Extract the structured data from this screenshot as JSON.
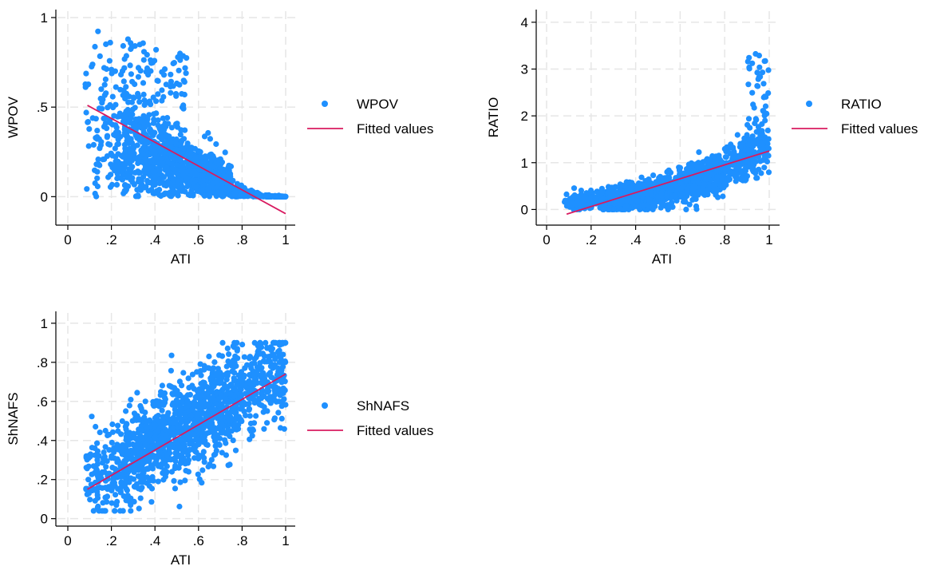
{
  "chart_data": [
    {
      "type": "scatter",
      "xlabel": "ATI",
      "ylabel": "WPOV",
      "xlim": [
        0,
        1
      ],
      "ylim": [
        -0.15,
        1
      ],
      "xticks": [
        0,
        0.2,
        0.4,
        0.6,
        0.8,
        1
      ],
      "xtick_labels": [
        "0",
        ".2",
        ".4",
        ".6",
        ".8",
        "1"
      ],
      "yticks": [
        0,
        0.5,
        1
      ],
      "ytick_labels": [
        "0",
        ".5",
        "1"
      ],
      "grid": true,
      "legend_position": "right",
      "series": [
        {
          "name": "WPOV",
          "kind": "scatter",
          "color": "#1E90FF"
        },
        {
          "name": "Fitted values",
          "kind": "line",
          "color": "#D81B60",
          "x": [
            0.09,
            1.0
          ],
          "y": [
            0.51,
            -0.095
          ]
        }
      ],
      "pattern": "decreasing",
      "point_cloud": {
        "x_range": [
          0.08,
          1.0
        ],
        "y_range": [
          0.0,
          0.93
        ],
        "approx_points": 1500
      }
    },
    {
      "type": "scatter",
      "xlabel": "ATI",
      "ylabel": "RATIO",
      "xlim": [
        0,
        1
      ],
      "ylim": [
        -0.3,
        4.1
      ],
      "xticks": [
        0,
        0.2,
        0.4,
        0.6,
        0.8,
        1
      ],
      "xtick_labels": [
        "0",
        ".2",
        ".4",
        ".6",
        ".8",
        "1"
      ],
      "yticks": [
        0,
        1,
        2,
        3,
        4
      ],
      "ytick_labels": [
        "0",
        "1",
        "2",
        "3",
        "4"
      ],
      "grid": true,
      "legend_position": "right",
      "series": [
        {
          "name": "RATIO",
          "kind": "scatter",
          "color": "#1E90FF"
        },
        {
          "name": "Fitted values",
          "kind": "line",
          "color": "#D81B60",
          "x": [
            0.09,
            1.0
          ],
          "y": [
            -0.1,
            1.25
          ]
        }
      ],
      "pattern": "convex-increasing",
      "point_cloud": {
        "x_range": [
          0.08,
          1.0
        ],
        "y_range": [
          0.0,
          3.4
        ],
        "approx_points": 1500
      }
    },
    {
      "type": "scatter",
      "xlabel": "ATI",
      "ylabel": "ShNAFS",
      "xlim": [
        0,
        1
      ],
      "ylim": [
        -0.03,
        1.02
      ],
      "xticks": [
        0,
        0.2,
        0.4,
        0.6,
        0.8,
        1
      ],
      "xtick_labels": [
        "0",
        ".2",
        ".4",
        ".6",
        ".8",
        "1"
      ],
      "yticks": [
        0,
        0.2,
        0.4,
        0.6,
        0.8,
        1
      ],
      "ytick_labels": [
        "0",
        ".2",
        ".4",
        ".6",
        ".8",
        "1"
      ],
      "grid": true,
      "legend_position": "right",
      "series": [
        {
          "name": "ShNAFS",
          "kind": "scatter",
          "color": "#1E90FF"
        },
        {
          "name": "Fitted values",
          "kind": "line",
          "color": "#D81B60",
          "x": [
            0.09,
            1.0
          ],
          "y": [
            0.15,
            0.74
          ]
        }
      ],
      "pattern": "increasing",
      "point_cloud": {
        "x_range": [
          0.08,
          1.0
        ],
        "y_range": [
          0.04,
          0.9
        ],
        "approx_points": 1500
      }
    }
  ]
}
